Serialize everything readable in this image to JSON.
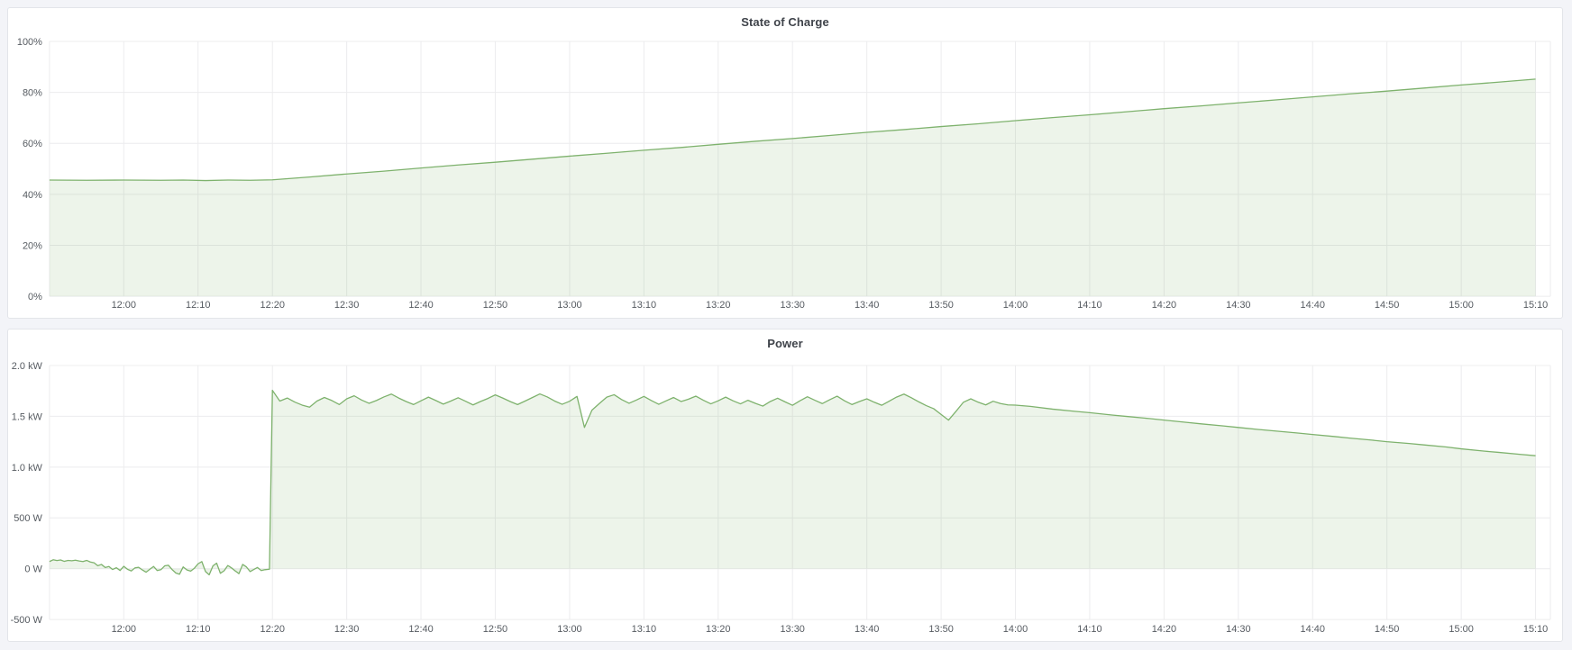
{
  "page": {
    "background": "#f3f4f8",
    "panel_background": "#ffffff",
    "panel_border": "#e3e5e9"
  },
  "chart_data": [
    {
      "type": "area",
      "title": "State of Charge",
      "xlabel": "",
      "ylabel": "",
      "ylim": [
        0,
        100
      ],
      "x_range_minutes": [
        710,
        912
      ],
      "grid": true,
      "legend": "none",
      "line_color": "#7eb26d",
      "fill_color": "rgba(126,178,109,0.14)",
      "grid_color": "#ececee",
      "tick_color": "#565b61",
      "fill_baseline": 0,
      "y_ticks": {
        "values": [
          100,
          80,
          60,
          40,
          20,
          0
        ],
        "labels": [
          "100%",
          "80%",
          "60%",
          "40%",
          "20%",
          "0%"
        ]
      },
      "x_tick_minutes": [
        720,
        730,
        740,
        750,
        760,
        770,
        780,
        790,
        800,
        810,
        820,
        830,
        840,
        850,
        860,
        870,
        880,
        890,
        900,
        910
      ],
      "x_tick_labels": [
        "12:00",
        "12:10",
        "12:20",
        "12:30",
        "12:40",
        "12:50",
        "13:00",
        "13:10",
        "13:20",
        "13:30",
        "13:40",
        "13:50",
        "14:00",
        "14:10",
        "14:20",
        "14:30",
        "14:40",
        "14:50",
        "15:00",
        "15:10"
      ],
      "series": [
        {
          "name": "state-of-charge",
          "unit": "percent",
          "points": [
            [
              710,
              45.6
            ],
            [
              715,
              45.5
            ],
            [
              720,
              45.6
            ],
            [
              725,
              45.5
            ],
            [
              728,
              45.6
            ],
            [
              731,
              45.4
            ],
            [
              734,
              45.6
            ],
            [
              737,
              45.5
            ],
            [
              740,
              45.7
            ],
            [
              745,
              46.8
            ],
            [
              750,
              48.0
            ],
            [
              755,
              49.1
            ],
            [
              760,
              50.3
            ],
            [
              765,
              51.5
            ],
            [
              770,
              52.6
            ],
            [
              775,
              53.8
            ],
            [
              780,
              55.0
            ],
            [
              785,
              56.1
            ],
            [
              790,
              57.3
            ],
            [
              795,
              58.4
            ],
            [
              800,
              59.6
            ],
            [
              805,
              60.8
            ],
            [
              810,
              61.9
            ],
            [
              815,
              63.1
            ],
            [
              820,
              64.3
            ],
            [
              825,
              65.4
            ],
            [
              830,
              66.6
            ],
            [
              835,
              67.7
            ],
            [
              840,
              68.9
            ],
            [
              845,
              70.1
            ],
            [
              850,
              71.2
            ],
            [
              855,
              72.4
            ],
            [
              860,
              73.6
            ],
            [
              865,
              74.7
            ],
            [
              870,
              75.9
            ],
            [
              875,
              77.0
            ],
            [
              880,
              78.2
            ],
            [
              885,
              79.4
            ],
            [
              890,
              80.5
            ],
            [
              895,
              81.7
            ],
            [
              900,
              82.9
            ],
            [
              905,
              84.0
            ],
            [
              910,
              85.2
            ]
          ]
        }
      ]
    },
    {
      "type": "area",
      "title": "Power",
      "xlabel": "",
      "ylabel": "",
      "ylim": [
        -500,
        2000
      ],
      "x_range_minutes": [
        710,
        912
      ],
      "grid": true,
      "legend": "none",
      "line_color": "#7eb26d",
      "fill_color": "rgba(126,178,109,0.14)",
      "grid_color": "#ececee",
      "tick_color": "#565b61",
      "fill_baseline": 0,
      "y_ticks": {
        "values": [
          2000,
          1500,
          1000,
          500,
          0,
          -500
        ],
        "labels": [
          "2.0 kW",
          "1.5 kW",
          "1.0 kW",
          "500 W",
          "0 W",
          "-500 W"
        ]
      },
      "x_tick_minutes": [
        720,
        730,
        740,
        750,
        760,
        770,
        780,
        790,
        800,
        810,
        820,
        830,
        840,
        850,
        860,
        870,
        880,
        890,
        900,
        910
      ],
      "x_tick_labels": [
        "12:00",
        "12:10",
        "12:20",
        "12:30",
        "12:40",
        "12:50",
        "13:00",
        "13:10",
        "13:20",
        "13:30",
        "13:40",
        "13:50",
        "14:00",
        "14:10",
        "14:20",
        "14:30",
        "14:40",
        "14:50",
        "15:00",
        "15:10"
      ],
      "series": [
        {
          "name": "power",
          "unit": "watt",
          "points": [
            [
              710,
              70
            ],
            [
              710.5,
              88
            ],
            [
              711,
              80
            ],
            [
              711.5,
              86
            ],
            [
              712,
              72
            ],
            [
              712.5,
              82
            ],
            [
              713,
              78
            ],
            [
              713.5,
              84
            ],
            [
              714,
              76
            ],
            [
              714.5,
              70
            ],
            [
              715,
              82
            ],
            [
              715.5,
              66
            ],
            [
              716,
              58
            ],
            [
              716.5,
              30
            ],
            [
              717,
              42
            ],
            [
              717.5,
              12
            ],
            [
              718,
              22
            ],
            [
              718.5,
              -8
            ],
            [
              719,
              10
            ],
            [
              719.5,
              -18
            ],
            [
              720,
              24
            ],
            [
              720.5,
              -6
            ],
            [
              721,
              -22
            ],
            [
              721.5,
              8
            ],
            [
              722,
              14
            ],
            [
              722.5,
              -12
            ],
            [
              723,
              -34
            ],
            [
              723.5,
              -6
            ],
            [
              724,
              22
            ],
            [
              724.5,
              -18
            ],
            [
              725,
              -10
            ],
            [
              725.5,
              28
            ],
            [
              726,
              34
            ],
            [
              726.5,
              -8
            ],
            [
              727,
              -42
            ],
            [
              727.5,
              -55
            ],
            [
              728,
              18
            ],
            [
              728.5,
              -12
            ],
            [
              729,
              -24
            ],
            [
              729.5,
              4
            ],
            [
              730,
              48
            ],
            [
              730.5,
              70
            ],
            [
              731,
              -28
            ],
            [
              731.5,
              -60
            ],
            [
              732,
              28
            ],
            [
              732.5,
              55
            ],
            [
              733,
              -45
            ],
            [
              733.5,
              -20
            ],
            [
              734,
              32
            ],
            [
              734.5,
              8
            ],
            [
              735,
              -22
            ],
            [
              735.5,
              -48
            ],
            [
              736,
              42
            ],
            [
              736.5,
              18
            ],
            [
              737,
              -28
            ],
            [
              737.5,
              -8
            ],
            [
              738,
              12
            ],
            [
              738.5,
              -18
            ],
            [
              739,
              -10
            ],
            [
              739.6,
              -4
            ],
            [
              740,
              1755
            ],
            [
              741,
              1650
            ],
            [
              742,
              1680
            ],
            [
              743,
              1640
            ],
            [
              744,
              1610
            ],
            [
              745,
              1590
            ],
            [
              746,
              1650
            ],
            [
              747,
              1685
            ],
            [
              748,
              1655
            ],
            [
              749,
              1615
            ],
            [
              750,
              1672
            ],
            [
              751,
              1702
            ],
            [
              752,
              1660
            ],
            [
              753,
              1628
            ],
            [
              754,
              1655
            ],
            [
              755,
              1690
            ],
            [
              756,
              1718
            ],
            [
              757,
              1680
            ],
            [
              758,
              1645
            ],
            [
              759,
              1615
            ],
            [
              760,
              1652
            ],
            [
              761,
              1688
            ],
            [
              762,
              1655
            ],
            [
              763,
              1620
            ],
            [
              764,
              1650
            ],
            [
              765,
              1682
            ],
            [
              766,
              1648
            ],
            [
              767,
              1612
            ],
            [
              768,
              1645
            ],
            [
              769,
              1675
            ],
            [
              770,
              1710
            ],
            [
              771,
              1680
            ],
            [
              772,
              1645
            ],
            [
              773,
              1615
            ],
            [
              774,
              1650
            ],
            [
              775,
              1685
            ],
            [
              776,
              1720
            ],
            [
              777,
              1690
            ],
            [
              778,
              1650
            ],
            [
              779,
              1618
            ],
            [
              780,
              1648
            ],
            [
              781,
              1695
            ],
            [
              782,
              1390
            ],
            [
              783,
              1560
            ],
            [
              784,
              1625
            ],
            [
              785,
              1688
            ],
            [
              786,
              1712
            ],
            [
              787,
              1665
            ],
            [
              788,
              1628
            ],
            [
              789,
              1660
            ],
            [
              790,
              1695
            ],
            [
              791,
              1655
            ],
            [
              792,
              1618
            ],
            [
              793,
              1652
            ],
            [
              794,
              1685
            ],
            [
              795,
              1645
            ],
            [
              796,
              1668
            ],
            [
              797,
              1698
            ],
            [
              798,
              1658
            ],
            [
              799,
              1622
            ],
            [
              800,
              1652
            ],
            [
              801,
              1688
            ],
            [
              802,
              1652
            ],
            [
              803,
              1622
            ],
            [
              804,
              1658
            ],
            [
              805,
              1628
            ],
            [
              806,
              1600
            ],
            [
              807,
              1645
            ],
            [
              808,
              1678
            ],
            [
              809,
              1642
            ],
            [
              810,
              1608
            ],
            [
              811,
              1652
            ],
            [
              812,
              1692
            ],
            [
              813,
              1658
            ],
            [
              814,
              1625
            ],
            [
              815,
              1662
            ],
            [
              816,
              1698
            ],
            [
              817,
              1652
            ],
            [
              818,
              1615
            ],
            [
              819,
              1645
            ],
            [
              820,
              1672
            ],
            [
              821,
              1638
            ],
            [
              822,
              1608
            ],
            [
              823,
              1648
            ],
            [
              824,
              1688
            ],
            [
              825,
              1718
            ],
            [
              826,
              1682
            ],
            [
              827,
              1642
            ],
            [
              828,
              1605
            ],
            [
              829,
              1575
            ],
            [
              830,
              1518
            ],
            [
              831,
              1462
            ],
            [
              832,
              1548
            ],
            [
              833,
              1638
            ],
            [
              834,
              1672
            ],
            [
              835,
              1638
            ],
            [
              836,
              1612
            ],
            [
              837,
              1648
            ],
            [
              838,
              1625
            ],
            [
              839,
              1612
            ],
            [
              840,
              1610
            ],
            [
              842,
              1598
            ],
            [
              845,
              1570
            ],
            [
              848,
              1548
            ],
            [
              850,
              1535
            ],
            [
              853,
              1512
            ],
            [
              855,
              1498
            ],
            [
              858,
              1478
            ],
            [
              860,
              1462
            ],
            [
              863,
              1440
            ],
            [
              865,
              1425
            ],
            [
              868,
              1405
            ],
            [
              870,
              1390
            ],
            [
              873,
              1368
            ],
            [
              875,
              1355
            ],
            [
              878,
              1335
            ],
            [
              880,
              1320
            ],
            [
              883,
              1300
            ],
            [
              885,
              1285
            ],
            [
              888,
              1265
            ],
            [
              890,
              1250
            ],
            [
              893,
              1232
            ],
            [
              895,
              1218
            ],
            [
              898,
              1198
            ],
            [
              900,
              1180
            ],
            [
              903,
              1158
            ],
            [
              905,
              1145
            ],
            [
              908,
              1125
            ],
            [
              910,
              1112
            ]
          ]
        }
      ]
    }
  ]
}
